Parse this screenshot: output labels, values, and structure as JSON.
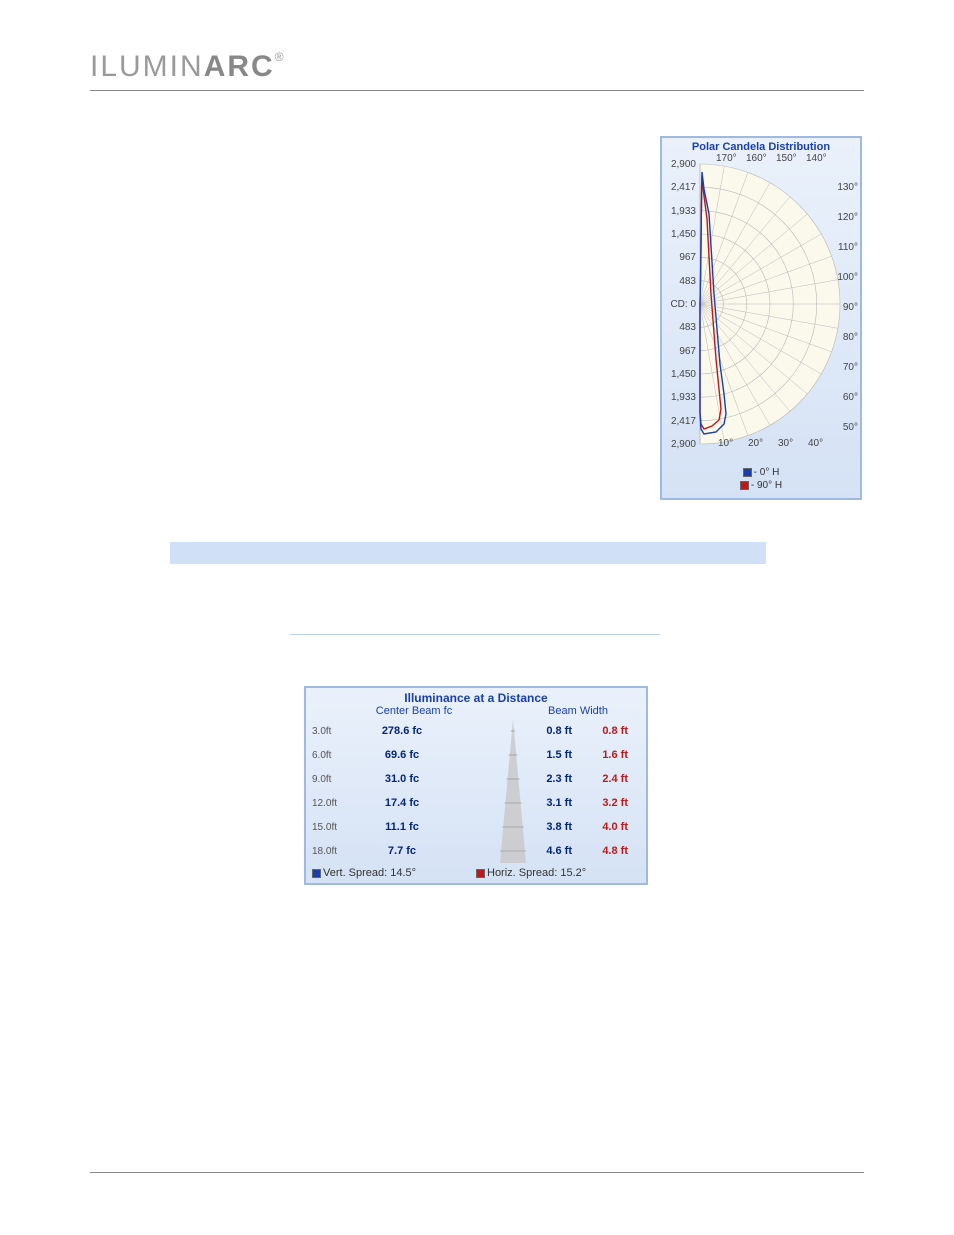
{
  "brand": {
    "pre": "ILUMIN",
    "bold": "ARC",
    "reg": "®"
  },
  "polar": {
    "title": "Polar Candela Distribution",
    "y_labels": [
      "2,900",
      "2,417",
      "1,933",
      "1,450",
      "967",
      "483",
      "CD: 0",
      "483",
      "967",
      "1,450",
      "1,933",
      "2,417",
      "2,900"
    ],
    "top_angles": [
      "170°",
      "160°",
      "150°",
      "140°"
    ],
    "right_angles": [
      "130°",
      "120°",
      "110°",
      "100°",
      "90°",
      "80°",
      "70°",
      "60°",
      "50°"
    ],
    "bottom_angles": [
      "10°",
      "20°",
      "30°",
      "40°"
    ],
    "legend": [
      {
        "color": "#1a3fad",
        "label": "- 0° H"
      },
      {
        "color": "#c01818",
        "label": "- 90° H"
      }
    ],
    "grid_color": "#b8b8b8",
    "bg_fill": "#fbf9ec",
    "radial_ticks": 6,
    "blue_line": "M 34,150 L 34.5,130 34.8,110 35,90 35.2,70 35.5,50 35.8,30 36,18 38,35 43,60 48,140 54,210 58,240 60,260 58,270 50,278 38,280 35,275 34,260 34,150",
    "red_line": "M 34,150 L 34.4,132 34.7,112 35,92 35.2,72 35.4,52 35.6,32 36,22 37.5,38 41,65 45,140 50,205 53,235 55,255 53,266 46,272 38,275 35,270 34,258 34,150"
  },
  "illum": {
    "title": "Illuminance at a Distance",
    "sub_left": "Center Beam fc",
    "sub_right": "Beam Width",
    "rows": [
      {
        "dist": "3.0ft",
        "fc": "278.6 fc",
        "w1": "0.8 ft",
        "w2": "0.8 ft"
      },
      {
        "dist": "6.0ft",
        "fc": "69.6 fc",
        "w1": "1.5 ft",
        "w2": "1.6 ft"
      },
      {
        "dist": "9.0ft",
        "fc": "31.0 fc",
        "w1": "2.3 ft",
        "w2": "2.4 ft"
      },
      {
        "dist": "12.0ft",
        "fc": "17.4 fc",
        "w1": "3.1 ft",
        "w2": "3.2 ft"
      },
      {
        "dist": "15.0ft",
        "fc": "11.1 fc",
        "w1": "3.8 ft",
        "w2": "4.0 ft"
      },
      {
        "dist": "18.0ft",
        "fc": "7.7 fc",
        "w1": "4.6 ft",
        "w2": "4.8 ft"
      }
    ],
    "spread_vert": {
      "color": "#1a3fad",
      "label": "Vert. Spread: 14.5°"
    },
    "spread_horiz": {
      "color": "#c01818",
      "label": "Horiz. Spread: 15.2°"
    },
    "beam_fill": "#c9c9c9"
  }
}
